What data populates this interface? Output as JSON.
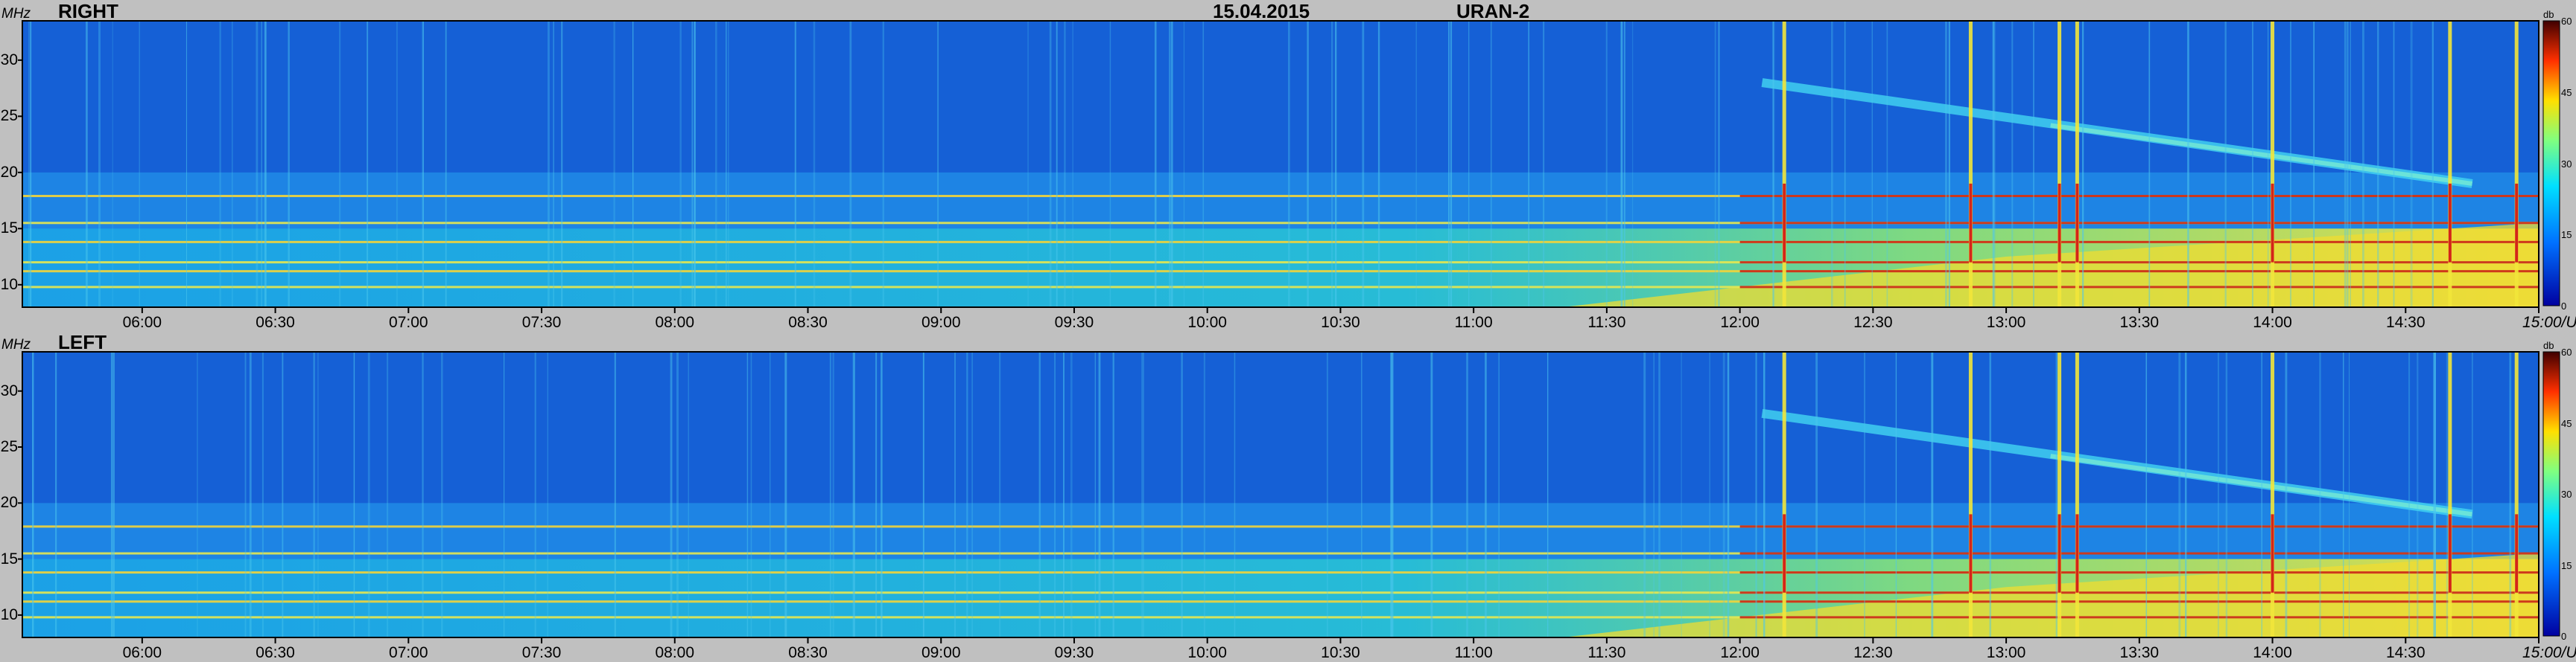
{
  "header": {
    "date": "15.04.2015",
    "telescope": "URAN-2"
  },
  "chart_data": [
    {
      "type": "heatmap",
      "label": "RIGHT",
      "ylabel": "MHz",
      "xlabel": "UT",
      "x_ticks": [
        "06:00",
        "06:30",
        "07:00",
        "07:30",
        "08:00",
        "08:30",
        "09:00",
        "09:30",
        "10:00",
        "10:30",
        "11:00",
        "11:30",
        "12:00",
        "12:30",
        "13:00",
        "13:30",
        "14:00",
        "14:30",
        "15:00"
      ],
      "x_end_suffix": "UT",
      "x_range": [
        "05:33",
        "15:00"
      ],
      "y_ticks": [
        10,
        15,
        20,
        25,
        30
      ],
      "y_range": [
        8,
        33.5
      ],
      "colorbar": {
        "label": "db",
        "ticks": [
          0,
          15,
          30,
          45,
          60
        ],
        "range": [
          0,
          60
        ]
      },
      "features": {
        "continuous_bands_mhz": [
          9.8,
          11.2,
          12.0,
          13.8,
          15.5,
          17.9
        ],
        "drifting_burst_start": {
          "time": "12:05",
          "freq_mhz": 28
        },
        "drifting_burst_end": {
          "time": "14:45",
          "freq_mhz": 19
        },
        "bursts_ut": [
          "12:10",
          "12:52",
          "13:12",
          "13:16",
          "14:00",
          "14:40",
          "14:55"
        ]
      }
    },
    {
      "type": "heatmap",
      "label": "LEFT",
      "ylabel": "MHz",
      "xlabel": "UT",
      "x_ticks": [
        "06:00",
        "06:30",
        "07:00",
        "07:30",
        "08:00",
        "08:30",
        "09:00",
        "09:30",
        "10:00",
        "10:30",
        "11:00",
        "11:30",
        "12:00",
        "12:30",
        "13:00",
        "13:30",
        "14:00",
        "14:30",
        "15:00"
      ],
      "x_end_suffix": "UT",
      "x_range": [
        "05:33",
        "15:00"
      ],
      "y_ticks": [
        10,
        15,
        20,
        25,
        30
      ],
      "y_range": [
        8,
        33.5
      ],
      "colorbar": {
        "label": "db",
        "ticks": [
          0,
          15,
          30,
          45,
          60
        ],
        "range": [
          0,
          60
        ]
      },
      "features": {
        "continuous_bands_mhz": [
          9.8,
          11.2,
          12.0,
          13.8,
          15.5,
          17.9
        ],
        "drifting_burst_start": {
          "time": "12:05",
          "freq_mhz": 28
        },
        "drifting_burst_end": {
          "time": "14:45",
          "freq_mhz": 19
        },
        "bursts_ut": [
          "12:10",
          "12:52",
          "13:12",
          "13:16",
          "14:00",
          "14:40",
          "14:55"
        ]
      }
    }
  ]
}
